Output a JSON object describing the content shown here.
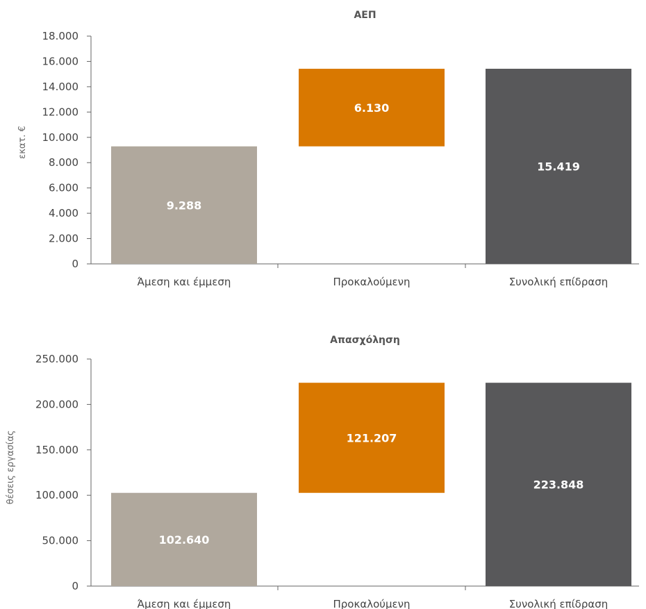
{
  "colors": {
    "direct_indirect": "#b0a89d",
    "induced": "#d97800",
    "total": "#58585a",
    "axis": "#666666",
    "text": "#444444"
  },
  "chart_data": [
    {
      "type": "bar",
      "subtype": "waterfall",
      "title": "ΑΕΠ",
      "ylabel": "εκατ. €",
      "xlabel": "",
      "ylim": [
        0,
        18000
      ],
      "yticks": [
        0,
        2000,
        4000,
        6000,
        8000,
        10000,
        12000,
        14000,
        16000,
        18000
      ],
      "ytick_labels": [
        "0",
        "2.000",
        "4.000",
        "6.000",
        "8.000",
        "10.000",
        "12.000",
        "14.000",
        "16.000",
        "18.000"
      ],
      "categories": [
        "Άμεση και έμμεση",
        "Προκαλούμενη",
        "Συνολική επίδραση"
      ],
      "values": [
        9288,
        6130,
        15419
      ],
      "bases": [
        0,
        9288,
        0
      ],
      "data_labels": [
        "9.288",
        "6.130",
        "15.419"
      ],
      "grid": false,
      "legend": "none"
    },
    {
      "type": "bar",
      "subtype": "waterfall",
      "title": "Απασχόληση",
      "ylabel": "θέσεις εργασίας",
      "xlabel": "",
      "ylim": [
        0,
        250000
      ],
      "yticks": [
        0,
        50000,
        100000,
        150000,
        200000,
        250000
      ],
      "ytick_labels": [
        "0",
        "50.000",
        "100.000",
        "150.000",
        "200.000",
        "250.000"
      ],
      "categories": [
        "Άμεση και έμμεση",
        "Προκαλούμενη",
        "Συνολική επίδραση"
      ],
      "values": [
        102640,
        121207,
        223848
      ],
      "bases": [
        0,
        102640,
        0
      ],
      "data_labels": [
        "102.640",
        "121.207",
        "223.848"
      ],
      "grid": false,
      "legend": "none"
    }
  ]
}
